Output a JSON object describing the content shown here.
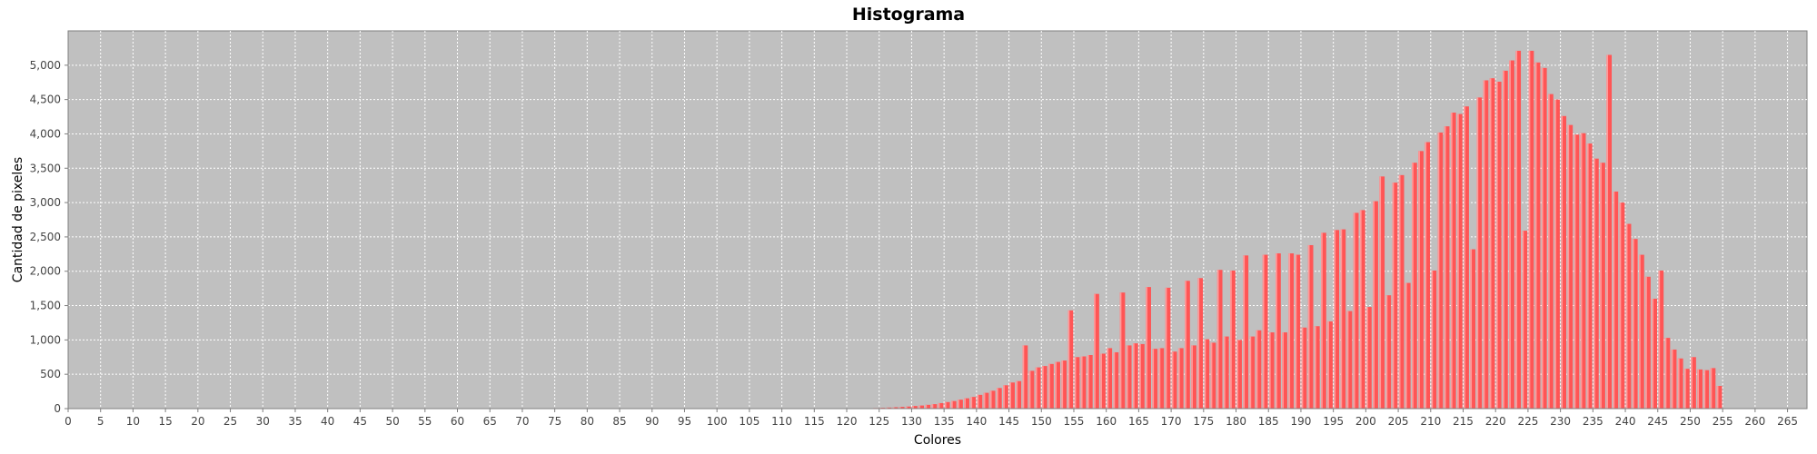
{
  "chart_data": {
    "type": "bar",
    "title": "Histograma",
    "xlabel": "Colores",
    "ylabel": "Cantidad de pixeles",
    "xlim": [
      0,
      268
    ],
    "ylim": [
      0,
      5500
    ],
    "x_ticks": [
      "0",
      "5",
      "10",
      "15",
      "20",
      "25",
      "30",
      "35",
      "40",
      "45",
      "50",
      "55",
      "60",
      "65",
      "70",
      "75",
      "80",
      "85",
      "90",
      "95",
      "100",
      "105",
      "110",
      "115",
      "120",
      "125",
      "130",
      "135",
      "140",
      "145",
      "150",
      "155",
      "160",
      "165",
      "170",
      "175",
      "180",
      "185",
      "190",
      "195",
      "200",
      "205",
      "210",
      "215",
      "220",
      "225",
      "230",
      "235",
      "240",
      "245",
      "250",
      "255",
      "260",
      "265"
    ],
    "y_ticks": [
      "0",
      "500",
      "1,000",
      "1,500",
      "2,000",
      "2,500",
      "3,000",
      "3,500",
      "4,000",
      "4,500",
      "5,000"
    ],
    "grid": true,
    "colors": {
      "bar": "#ff5555",
      "bar_highlight": "#ff9a9a",
      "plot_background": "#c0c0c0",
      "grid": "#ffffff"
    },
    "start_color": 0,
    "values": [
      0,
      0,
      0,
      0,
      0,
      0,
      0,
      0,
      0,
      0,
      0,
      0,
      0,
      0,
      0,
      0,
      0,
      0,
      0,
      0,
      0,
      0,
      0,
      0,
      0,
      0,
      0,
      0,
      0,
      0,
      0,
      0,
      0,
      0,
      0,
      0,
      0,
      0,
      0,
      0,
      0,
      0,
      0,
      0,
      0,
      0,
      0,
      0,
      0,
      0,
      0,
      0,
      0,
      0,
      0,
      0,
      0,
      0,
      0,
      0,
      0,
      0,
      0,
      0,
      0,
      0,
      0,
      0,
      0,
      0,
      0,
      0,
      0,
      0,
      0,
      0,
      0,
      0,
      0,
      0,
      0,
      0,
      0,
      0,
      0,
      0,
      0,
      0,
      0,
      0,
      0,
      0,
      0,
      0,
      0,
      0,
      0,
      0,
      0,
      0,
      0,
      0,
      0,
      0,
      0,
      0,
      0,
      0,
      0,
      0,
      0,
      0,
      0,
      0,
      0,
      0,
      0,
      0,
      0,
      0,
      0,
      2,
      3,
      5,
      8,
      12,
      15,
      20,
      25,
      30,
      38,
      45,
      55,
      65,
      80,
      95,
      110,
      130,
      150,
      170,
      200,
      230,
      260,
      300,
      340,
      380,
      400,
      920,
      550,
      600,
      620,
      650,
      680,
      700,
      1430,
      750,
      760,
      780,
      1670,
      800,
      880,
      820,
      1690,
      920,
      950,
      940,
      1770,
      870,
      880,
      1760,
      830,
      880,
      1860,
      920,
      1900,
      1010,
      960,
      2020,
      1050,
      2010,
      1000,
      2230,
      1050,
      1140,
      2240,
      1110,
      2260,
      1110,
      2260,
      2240,
      1180,
      2380,
      1200,
      2560,
      1270,
      2600,
      2610,
      1420,
      2850,
      2890,
      1480,
      3020,
      3380,
      1650,
      3290,
      3400,
      1830,
      3580,
      3750,
      3880,
      2010,
      4020,
      4110,
      4310,
      4290,
      4400,
      2320,
      4530,
      4780,
      4810,
      4760,
      4920,
      5070,
      5210,
      2590,
      5210,
      5040,
      4960,
      4580,
      4500,
      4260,
      4130,
      3990,
      4010,
      3860,
      3640,
      3580,
      5150,
      3160,
      3000,
      2690,
      2470,
      2240,
      1920,
      1600,
      2010,
      1030,
      860,
      730,
      580,
      750,
      570,
      560,
      590,
      330
    ]
  }
}
